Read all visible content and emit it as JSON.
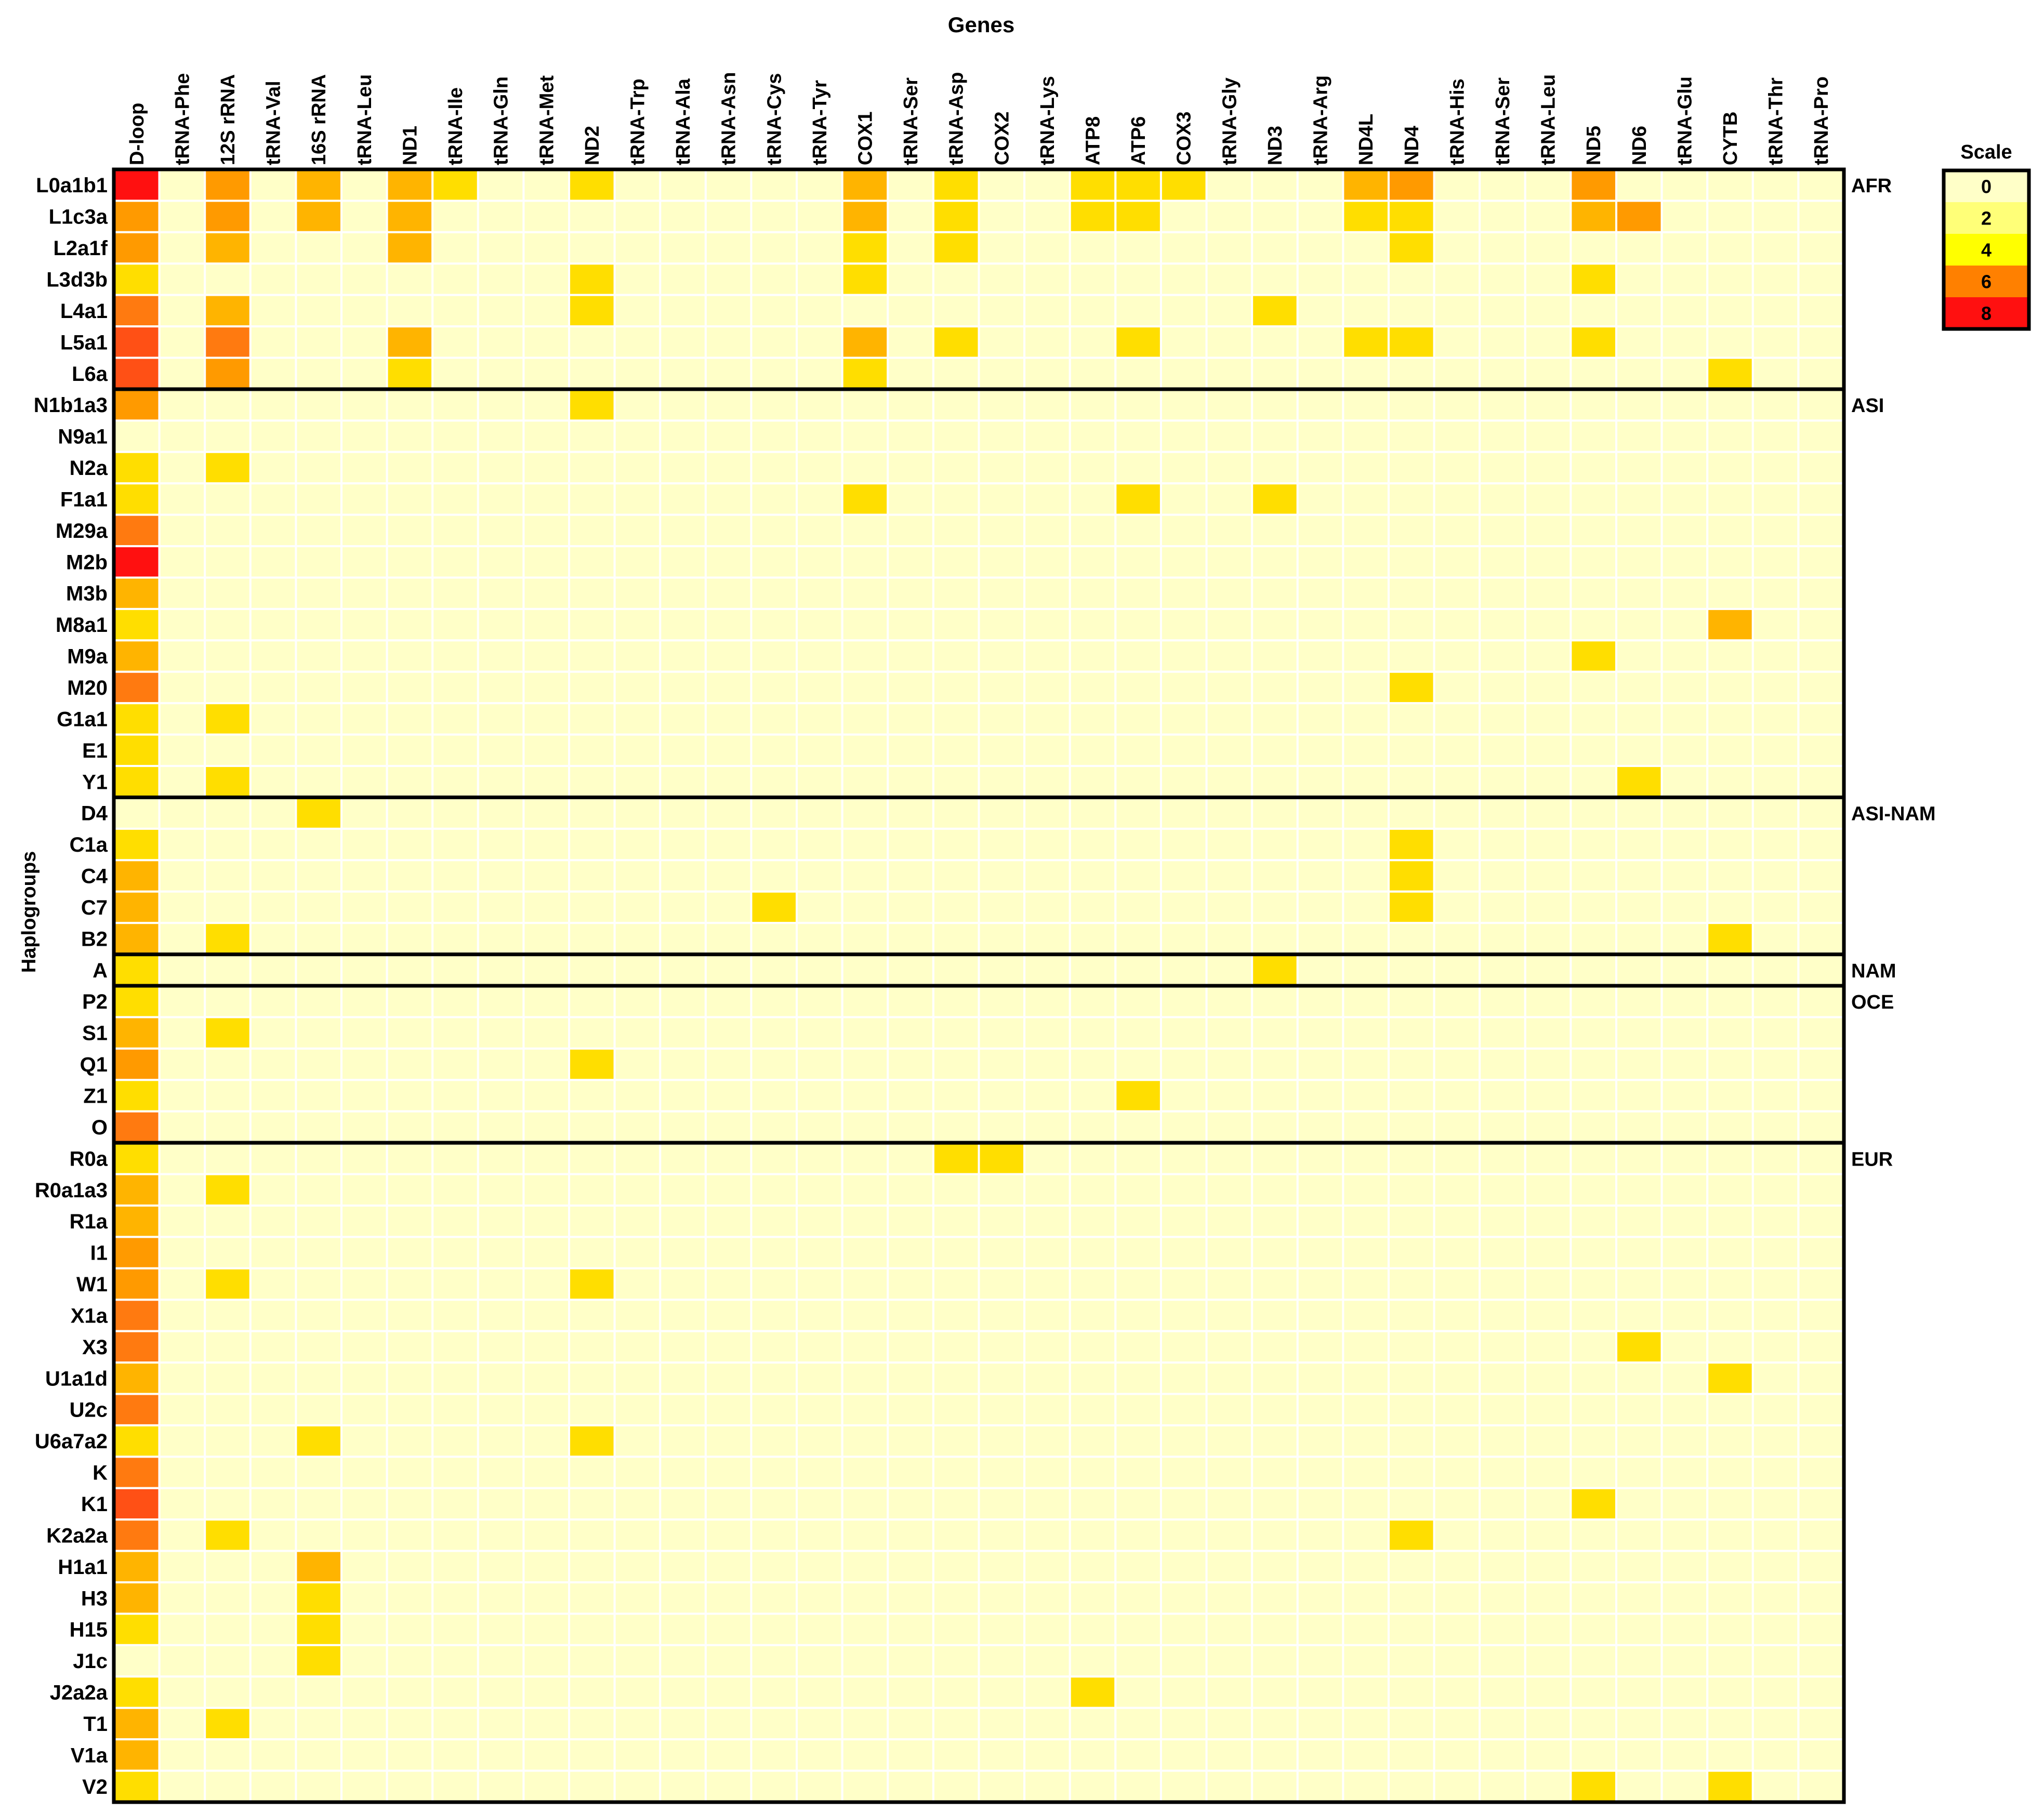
{
  "chart_data": {
    "type": "heatmap",
    "title": "Genes",
    "xlabel": "Genes",
    "ylabel": "Haplogroups",
    "columns": [
      "D-loop",
      "tRNA-Phe",
      "12S rRNA",
      "tRNA-Val",
      "16S rRNA",
      "tRNA-Leu",
      "ND1",
      "tRNA-Ile",
      "tRNA-Gln",
      "tRNA-Met",
      "ND2",
      "tRNA-Trp",
      "tRNA-Ala",
      "tRNA-Asn",
      "tRNA-Cys",
      "tRNA-Tyr",
      "COX1",
      "tRNA-Ser",
      "tRNA-Asp",
      "COX2",
      "tRNA-Lys",
      "ATP8",
      "ATP6",
      "COX3",
      "tRNA-Gly",
      "ND3",
      "tRNA-Arg",
      "ND4L",
      "ND4",
      "tRNA-His",
      "tRNA-Ser",
      "tRNA-Leu",
      "ND5",
      "ND6",
      "tRNA-Glu",
      "CYTB",
      "tRNA-Thr",
      "tRNA-Pro"
    ],
    "rows": [
      "L0a1b1",
      "L1c3a",
      "L2a1f",
      "L3d3b",
      "L4a1",
      "L5a1",
      "L6a",
      "N1b1a3",
      "N9a1",
      "N2a",
      "F1a1",
      "M29a",
      "M2b",
      "M3b",
      "M8a1",
      "M9a",
      "M20",
      "G1a1",
      "E1",
      "Y1",
      "D4",
      "C1a",
      "C4",
      "C7",
      "B2",
      "A",
      "P2",
      "S1",
      "Q1",
      "Z1",
      "O",
      "R0a",
      "R0a1a3",
      "R1a",
      "I1",
      "W1",
      "X1a",
      "X3",
      "U1a1d",
      "U2c",
      "U6a7a2",
      "K",
      "K1",
      "K2a2a",
      "H1a1",
      "H3",
      "H15",
      "J1c",
      "J2a2a",
      "T1",
      "V1a",
      "V2"
    ],
    "groups": [
      {
        "name": "AFR",
        "start": 0,
        "end": 6
      },
      {
        "name": "ASI",
        "start": 7,
        "end": 19
      },
      {
        "name": "ASI-NAM",
        "start": 20,
        "end": 24
      },
      {
        "name": "NAM",
        "start": 25,
        "end": 25
      },
      {
        "name": "OCE",
        "start": 26,
        "end": 30
      },
      {
        "name": "EUR",
        "start": 31,
        "end": 51
      }
    ],
    "dloop_values": [
      8,
      5,
      5,
      3,
      6,
      7,
      7,
      5,
      0,
      3,
      3,
      6,
      8,
      4,
      3,
      4,
      6,
      3,
      3,
      3,
      0,
      3,
      4,
      4,
      4,
      3,
      3,
      4,
      5,
      3,
      6,
      3,
      4,
      4,
      5,
      5,
      6,
      6,
      4,
      6,
      3,
      6,
      7,
      6,
      4,
      4,
      3,
      0,
      3,
      4,
      4,
      3
    ],
    "other_cells": [
      [
        0,
        2,
        5
      ],
      [
        0,
        4,
        4
      ],
      [
        0,
        6,
        4
      ],
      [
        0,
        7,
        3
      ],
      [
        0,
        10,
        3
      ],
      [
        0,
        16,
        4
      ],
      [
        0,
        18,
        3
      ],
      [
        0,
        21,
        3
      ],
      [
        0,
        22,
        3
      ],
      [
        0,
        23,
        3
      ],
      [
        0,
        27,
        4
      ],
      [
        0,
        28,
        5
      ],
      [
        0,
        32,
        5
      ],
      [
        1,
        2,
        5
      ],
      [
        1,
        4,
        4
      ],
      [
        1,
        6,
        4
      ],
      [
        1,
        16,
        4
      ],
      [
        1,
        18,
        3
      ],
      [
        1,
        21,
        3
      ],
      [
        1,
        22,
        3
      ],
      [
        1,
        27,
        3
      ],
      [
        1,
        28,
        3
      ],
      [
        1,
        32,
        4
      ],
      [
        1,
        33,
        5
      ],
      [
        2,
        2,
        4
      ],
      [
        2,
        6,
        4
      ],
      [
        2,
        16,
        3
      ],
      [
        2,
        18,
        3
      ],
      [
        2,
        28,
        3
      ],
      [
        3,
        10,
        3
      ],
      [
        3,
        16,
        3
      ],
      [
        3,
        32,
        3
      ],
      [
        4,
        2,
        4
      ],
      [
        4,
        10,
        3
      ],
      [
        4,
        25,
        3
      ],
      [
        5,
        2,
        6
      ],
      [
        5,
        6,
        4
      ],
      [
        5,
        16,
        4
      ],
      [
        5,
        18,
        3
      ],
      [
        5,
        22,
        3
      ],
      [
        5,
        27,
        3
      ],
      [
        5,
        28,
        3
      ],
      [
        5,
        32,
        3
      ],
      [
        6,
        2,
        5
      ],
      [
        6,
        6,
        3
      ],
      [
        6,
        16,
        3
      ],
      [
        6,
        35,
        3
      ],
      [
        7,
        10,
        3
      ],
      [
        9,
        2,
        3
      ],
      [
        10,
        16,
        3
      ],
      [
        10,
        22,
        3
      ],
      [
        10,
        25,
        3
      ],
      [
        14,
        35,
        4
      ],
      [
        15,
        32,
        3
      ],
      [
        16,
        28,
        3
      ],
      [
        17,
        2,
        3
      ],
      [
        19,
        2,
        3
      ],
      [
        19,
        33,
        3
      ],
      [
        20,
        4,
        3
      ],
      [
        21,
        28,
        3
      ],
      [
        22,
        28,
        3
      ],
      [
        23,
        14,
        3
      ],
      [
        23,
        28,
        3
      ],
      [
        24,
        2,
        3
      ],
      [
        24,
        35,
        3
      ],
      [
        25,
        25,
        3
      ],
      [
        27,
        2,
        3
      ],
      [
        28,
        10,
        3
      ],
      [
        29,
        22,
        3
      ],
      [
        31,
        18,
        3
      ],
      [
        31,
        19,
        3
      ],
      [
        32,
        2,
        3
      ],
      [
        35,
        2,
        3
      ],
      [
        35,
        10,
        3
      ],
      [
        37,
        33,
        3
      ],
      [
        38,
        35,
        3
      ],
      [
        40,
        4,
        3
      ],
      [
        40,
        10,
        3
      ],
      [
        42,
        32,
        3
      ],
      [
        43,
        2,
        3
      ],
      [
        43,
        28,
        3
      ],
      [
        44,
        4,
        4
      ],
      [
        45,
        4,
        3
      ],
      [
        46,
        4,
        3
      ],
      [
        47,
        4,
        3
      ],
      [
        48,
        21,
        3
      ],
      [
        49,
        2,
        3
      ],
      [
        51,
        32,
        3
      ],
      [
        51,
        35,
        3
      ]
    ],
    "scale": {
      "title": "Scale",
      "labels": [
        "0",
        "2",
        "4",
        "6",
        "8"
      ],
      "colors": [
        "#ffffc8",
        "#ffff78",
        "#ffff00",
        "#ff8000",
        "#ff1010"
      ]
    },
    "palette": [
      "#ffffc8",
      "#fffb9c",
      "#fff176",
      "#ffde00",
      "#ffb400",
      "#ff9a00",
      "#ff7a10",
      "#ff5015",
      "#ff1010"
    ]
  }
}
